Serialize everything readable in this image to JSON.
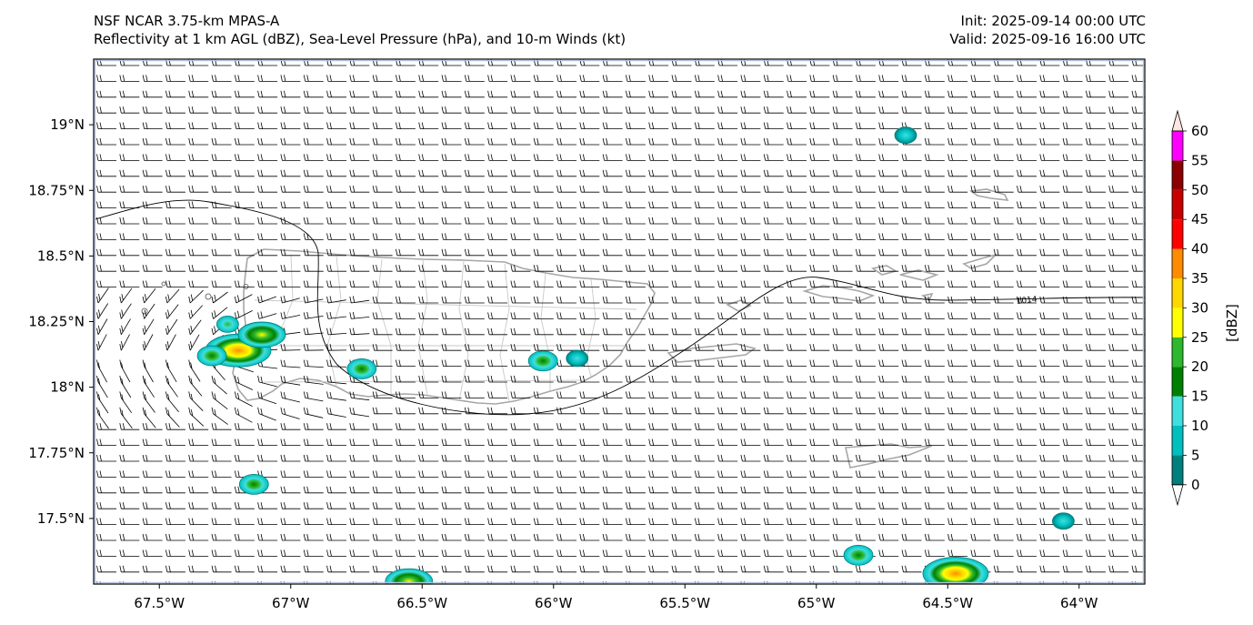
{
  "header": {
    "title_line1": "NSF NCAR 3.75-km MPAS-A",
    "title_line2": "Reflectivity at 1 km AGL (dBZ), Sea-Level Pressure (hPa), and 10-m Winds (kt)",
    "init": "Init: 2025-09-14 00:00 UTC",
    "valid": "Valid: 2025-09-16 16:00 UTC"
  },
  "map": {
    "lon_range": [
      -67.75,
      -63.75
    ],
    "lat_range": [
      17.25,
      19.25
    ],
    "lon_ticks": [
      {
        "value": -67.5,
        "label": "67.5°W"
      },
      {
        "value": -67.0,
        "label": "67°W"
      },
      {
        "value": -66.5,
        "label": "66.5°W"
      },
      {
        "value": -66.0,
        "label": "66°W"
      },
      {
        "value": -65.5,
        "label": "65.5°W"
      },
      {
        "value": -65.0,
        "label": "65°W"
      },
      {
        "value": -64.5,
        "label": "64.5°W"
      },
      {
        "value": -64.0,
        "label": "64°W"
      }
    ],
    "lat_ticks": [
      {
        "value": 19.0,
        "label": "19°N"
      },
      {
        "value": 18.75,
        "label": "18.75°N"
      },
      {
        "value": 18.5,
        "label": "18.5°N"
      },
      {
        "value": 18.25,
        "label": "18.25°N"
      },
      {
        "value": 18.0,
        "label": "18°N"
      },
      {
        "value": 17.75,
        "label": "17.75°N"
      },
      {
        "value": 17.5,
        "label": "17.5°N"
      }
    ],
    "isobar_label": "1014",
    "wind_barb_color": "#000000",
    "coastline_color": "#a6a6a6",
    "echoes": [
      {
        "lon": -67.2,
        "lat": 18.14,
        "peak_dBZ": 35
      },
      {
        "lon": -67.3,
        "lat": 18.12,
        "peak_dBZ": 20
      },
      {
        "lon": -67.24,
        "lat": 18.24,
        "peak_dBZ": 15
      },
      {
        "lon": -67.11,
        "lat": 18.2,
        "peak_dBZ": 25
      },
      {
        "lon": -66.73,
        "lat": 18.07,
        "peak_dBZ": 20
      },
      {
        "lon": -66.04,
        "lat": 18.1,
        "peak_dBZ": 20
      },
      {
        "lon": -65.91,
        "lat": 18.11,
        "peak_dBZ": 10
      },
      {
        "lon": -64.66,
        "lat": 18.96,
        "peak_dBZ": 10
      },
      {
        "lon": -67.14,
        "lat": 17.63,
        "peak_dBZ": 20
      },
      {
        "lon": -64.84,
        "lat": 17.36,
        "peak_dBZ": 20
      },
      {
        "lon": -64.06,
        "lat": 17.49,
        "peak_dBZ": 10
      },
      {
        "lon": -66.55,
        "lat": 17.26,
        "peak_dBZ": 25
      },
      {
        "lon": -64.47,
        "lat": 17.29,
        "peak_dBZ": 35
      }
    ]
  },
  "colorbar": {
    "label": "[dBZ]",
    "ticks": [
      "0",
      "5",
      "10",
      "15",
      "20",
      "25",
      "30",
      "35",
      "40",
      "45",
      "50",
      "55",
      "60"
    ],
    "colors": [
      "#007f7f",
      "#00bfbf",
      "#3fdfdf",
      "#008000",
      "#2db82d",
      "#ffff00",
      "#ffd700",
      "#ff8c00",
      "#ff0000",
      "#c80000",
      "#8b0000",
      "#ff00ff"
    ],
    "under_color": "#ffffff",
    "over_color": "#ffe4e1"
  }
}
